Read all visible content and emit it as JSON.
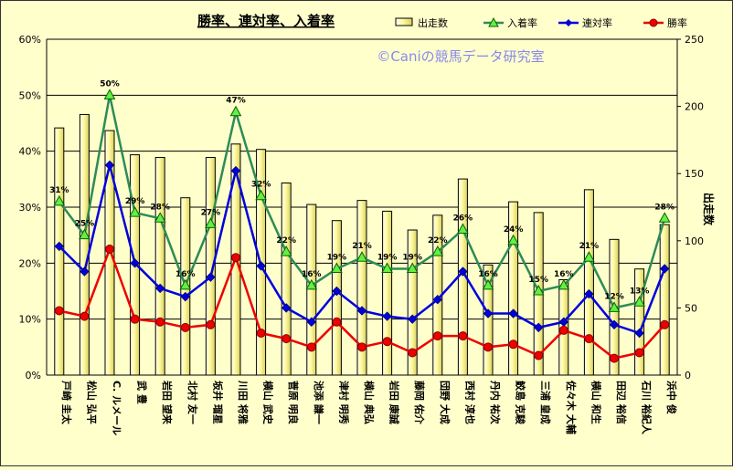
{
  "chart_data": {
    "type": "bar+line",
    "title": "勝率、連対率、入着率",
    "watermark": "©Caniの競馬データ研究室",
    "y2label": "出走数",
    "ylim_left": [
      0,
      60
    ],
    "ylim_right": [
      0,
      250
    ],
    "left_ticks": [
      "0%",
      "10%",
      "20%",
      "30%",
      "40%",
      "50%",
      "60%"
    ],
    "right_ticks": [
      "0",
      "50",
      "100",
      "150",
      "200",
      "250"
    ],
    "legend": [
      "出走数",
      "入着率",
      "連対率",
      "勝率"
    ],
    "legend_position": "top-right",
    "grid": true,
    "categories": [
      "戸崎 圭太",
      "松山 弘平",
      "C. ルメール",
      "武 豊",
      "岩田 望来",
      "北村 友一",
      "坂井 瑠星",
      "川田 将雅",
      "横山 武史",
      "菅原 明良",
      "池添 謙一",
      "津村 明秀",
      "横山 典弘",
      "岩田 康誠",
      "藤岡 佑介",
      "団野 大成",
      "西村 淳也",
      "丹内 祐次",
      "鮫島 克駿",
      "三浦 皇成",
      "佐々木 大輔",
      "横山 和生",
      "田辺 裕信",
      "石川 裕紀人",
      "浜中 俊"
    ],
    "series": [
      {
        "name": "出走数",
        "axis": "right",
        "kind": "bar",
        "values": [
          184,
          194,
          182,
          164,
          162,
          132,
          162,
          172,
          168,
          143,
          127,
          115,
          130,
          122,
          108,
          119,
          146,
          82,
          129,
          121,
          71,
          138,
          101,
          79,
          112
        ]
      },
      {
        "name": "入着率",
        "axis": "left",
        "kind": "line",
        "color": "#2e8b57",
        "values": [
          31,
          25,
          50,
          29,
          28,
          16,
          27,
          47,
          32,
          22,
          16,
          19,
          21,
          19,
          19,
          22,
          26,
          16,
          24,
          15,
          16,
          21,
          12,
          13,
          28
        ]
      },
      {
        "name": "連対率",
        "axis": "left",
        "kind": "line",
        "color": "#0000dd",
        "values": [
          23,
          18.5,
          37.5,
          20,
          15.5,
          14,
          17.5,
          36.5,
          19.5,
          12,
          9.5,
          15,
          11.5,
          10.5,
          10,
          13.5,
          18.5,
          11,
          11,
          8.5,
          9.5,
          14.5,
          9,
          7.5,
          19
        ]
      },
      {
        "name": "勝率",
        "axis": "left",
        "kind": "line",
        "color": "#ee0000",
        "values": [
          11.5,
          10.5,
          22.5,
          10,
          9.5,
          8.5,
          9,
          21,
          7.5,
          6.5,
          5,
          9.5,
          5,
          6,
          4,
          7,
          7,
          5,
          5.5,
          3.5,
          8,
          6.5,
          3,
          4,
          9
        ]
      }
    ],
    "data_labels": {
      "series": "入着率",
      "values": [
        "31%",
        "25%",
        "50%",
        "29%",
        "28%",
        "16%",
        "27%",
        "47%",
        "32%",
        "22%",
        "16%",
        "19%",
        "21%",
        "19%",
        "19%",
        "22%",
        "26%",
        "16%",
        "24%",
        "15%",
        "16%",
        "21%",
        "12%",
        "13%",
        "28%"
      ]
    }
  }
}
